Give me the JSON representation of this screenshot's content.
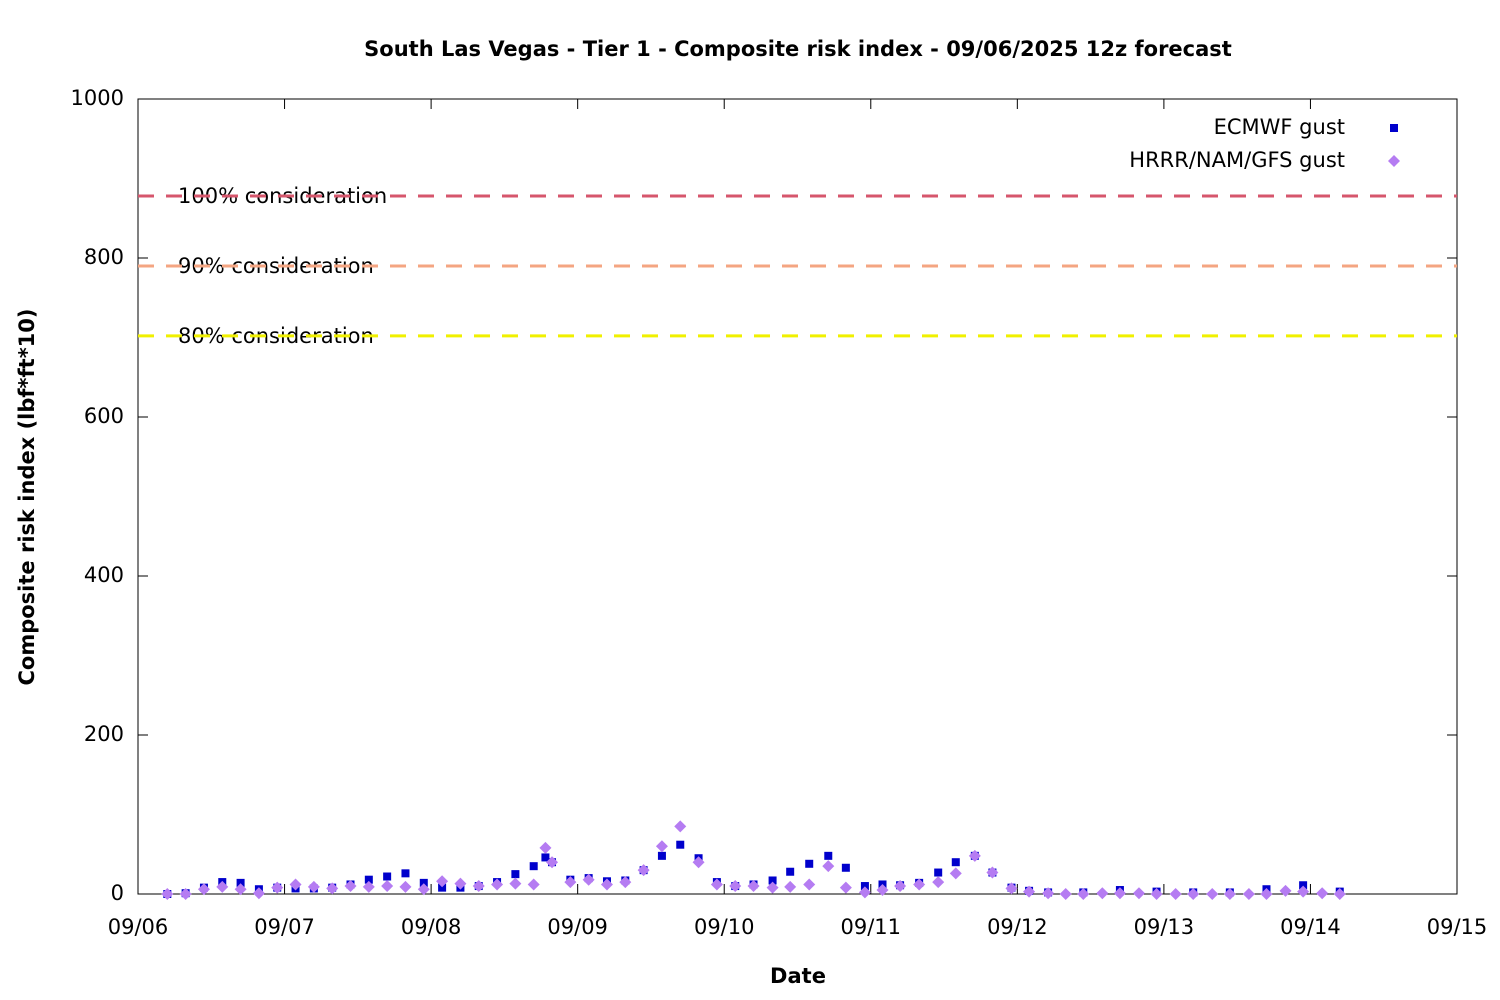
{
  "chart_data": {
    "type": "scatter",
    "title": "South Las Vegas - Tier 1 - Composite risk index - 09/06/2025 12z forecast",
    "x_label": "Date",
    "y_label": "Composite risk index (lbf*ft*10)",
    "xlim": [
      0,
      9
    ],
    "xticks": [
      {
        "value": 0,
        "label": "09/06"
      },
      {
        "value": 1,
        "label": "09/07"
      },
      {
        "value": 2,
        "label": "09/08"
      },
      {
        "value": 3,
        "label": "09/09"
      },
      {
        "value": 4,
        "label": "09/10"
      },
      {
        "value": 5,
        "label": "09/11"
      },
      {
        "value": 6,
        "label": "09/12"
      },
      {
        "value": 7,
        "label": "09/13"
      },
      {
        "value": 8,
        "label": "09/14"
      },
      {
        "value": 9,
        "label": "09/15"
      }
    ],
    "ylim": [
      0,
      1000
    ],
    "yticks": [
      0,
      200,
      400,
      600,
      800,
      1000
    ],
    "legend": "upper right",
    "thresholds": [
      {
        "label": "100% consideration",
        "value": 878,
        "color": "#d6566c"
      },
      {
        "label": "90% consideration",
        "value": 790,
        "color": "#f4a582"
      },
      {
        "label": "80% consideration",
        "value": 702,
        "color": "#f0f000"
      }
    ],
    "series": [
      {
        "name": "ECMWF gust",
        "color": "#0000cc",
        "marker": "square",
        "x": [
          0.2,
          0.325,
          0.45,
          0.575,
          0.7,
          0.825,
          0.95,
          1.075,
          1.2,
          1.325,
          1.45,
          1.575,
          1.7,
          1.825,
          1.95,
          2.075,
          2.2,
          2.325,
          2.45,
          2.575,
          2.7,
          2.78,
          2.825,
          2.95,
          3.075,
          3.2,
          3.325,
          3.45,
          3.575,
          3.7,
          3.825,
          3.95,
          4.075,
          4.2,
          4.33,
          4.45,
          4.58,
          4.71,
          4.83,
          4.96,
          5.08,
          5.2,
          5.33,
          5.46,
          5.58,
          5.71,
          5.83,
          5.96,
          6.08,
          6.21,
          6.45,
          6.7,
          6.95,
          7.2,
          7.45,
          7.7,
          7.95,
          8.2
        ],
        "values": [
          0,
          1,
          8,
          15,
          14,
          6,
          8,
          7,
          7,
          8,
          12,
          18,
          22,
          26,
          14,
          8,
          8,
          10,
          15,
          25,
          35,
          46,
          40,
          18,
          20,
          16,
          17,
          30,
          48,
          62,
          45,
          15,
          10,
          12,
          17,
          28,
          38,
          48,
          33,
          10,
          12,
          11,
          14,
          27,
          40,
          48,
          27,
          8,
          4,
          2,
          2,
          5,
          3,
          2,
          2,
          6,
          11,
          3
        ]
      },
      {
        "name": "HRRR/NAM/GFS gust",
        "color": "#b57cf2",
        "marker": "diamond",
        "x": [
          0.2,
          0.325,
          0.45,
          0.575,
          0.7,
          0.825,
          0.95,
          1.075,
          1.2,
          1.325,
          1.45,
          1.575,
          1.7,
          1.825,
          1.95,
          2.075,
          2.2,
          2.325,
          2.45,
          2.575,
          2.7,
          2.78,
          2.825,
          2.95,
          3.075,
          3.2,
          3.325,
          3.45,
          3.575,
          3.7,
          3.825,
          3.95,
          4.075,
          4.2,
          4.33,
          4.45,
          4.58,
          4.71,
          4.83,
          4.96,
          5.08,
          5.2,
          5.33,
          5.46,
          5.58,
          5.71,
          5.83,
          5.96,
          6.08,
          6.21,
          6.33,
          6.45,
          6.58,
          6.7,
          6.83,
          6.95,
          7.08,
          7.2,
          7.33,
          7.45,
          7.58,
          7.7,
          7.83,
          7.95,
          8.08,
          8.2
        ],
        "values": [
          0,
          0,
          6,
          9,
          6,
          1,
          8,
          12,
          9,
          7,
          10,
          9,
          10,
          9,
          6,
          16,
          13,
          10,
          12,
          13,
          12,
          58,
          40,
          15,
          18,
          12,
          15,
          30,
          60,
          85,
          40,
          12,
          10,
          10,
          8,
          9,
          12,
          35,
          8,
          2,
          5,
          10,
          12,
          15,
          26,
          48,
          27,
          7,
          3,
          1,
          0,
          0,
          1,
          1,
          1,
          0,
          0,
          0,
          0,
          0,
          0,
          0,
          4,
          3,
          1,
          0
        ]
      }
    ]
  }
}
